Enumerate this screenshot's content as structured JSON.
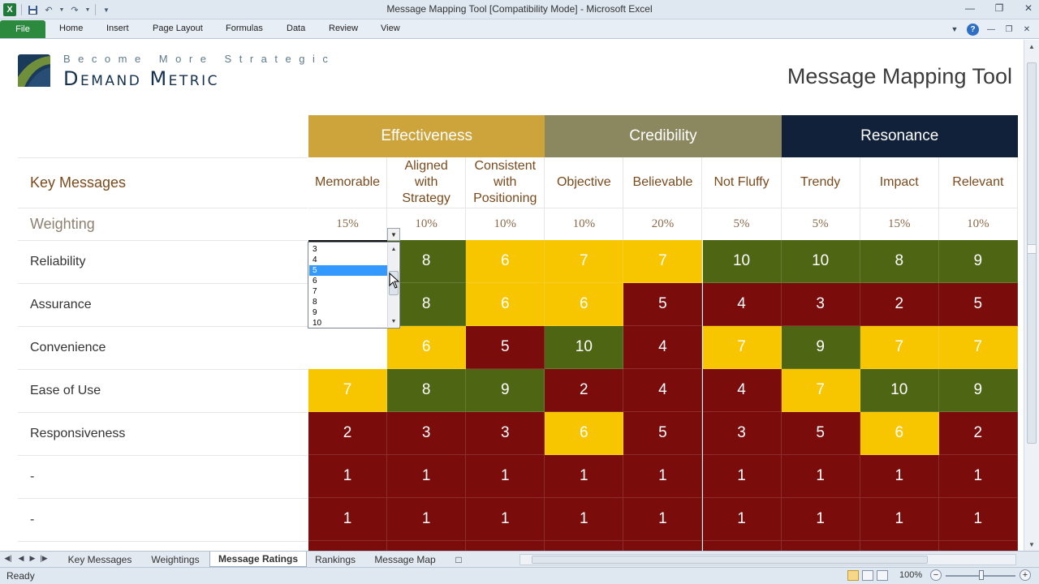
{
  "window": {
    "title": "Message Mapping Tool  [Compatibility Mode]  -  Microsoft Excel",
    "app_icon": "X"
  },
  "ribbon": {
    "file_label": "File",
    "tabs": [
      "Home",
      "Insert",
      "Page Layout",
      "Formulas",
      "Data",
      "Review",
      "View"
    ],
    "help_label": "?"
  },
  "logo": {
    "tagline": "Become More Strategic",
    "brand": "Demand Metric"
  },
  "sheet": {
    "tool_title": "Message Mapping Tool",
    "key_messages_label": "Key Messages",
    "weighting_label": "Weighting",
    "categories": [
      {
        "label": "Effectiveness",
        "color": "#cda43c"
      },
      {
        "label": "Credibility",
        "color": "#8b8860"
      },
      {
        "label": "Resonance",
        "color": "#12213a"
      }
    ],
    "criteria": [
      "Memorable",
      "Aligned with Strategy",
      "Consistent with Positioning",
      "Objective",
      "Believable",
      "Not Fluffy",
      "Trendy",
      "Impact",
      "Relevant"
    ],
    "weights": [
      "15%",
      "10%",
      "10%",
      "10%",
      "20%",
      "5%",
      "5%",
      "15%",
      "10%"
    ],
    "rows": [
      {
        "label": "Reliability",
        "scores": [
          "5",
          "8",
          "6",
          "7",
          "7",
          "10",
          "10",
          "8",
          "9"
        ]
      },
      {
        "label": "Assurance",
        "scores": [
          "",
          "8",
          "6",
          "6",
          "5",
          "4",
          "3",
          "2",
          "5"
        ]
      },
      {
        "label": "Convenience",
        "scores": [
          "",
          "6",
          "5",
          "10",
          "4",
          "7",
          "9",
          "7",
          "7"
        ]
      },
      {
        "label": "Ease of Use",
        "scores": [
          "7",
          "8",
          "9",
          "2",
          "4",
          "4",
          "7",
          "10",
          "9"
        ]
      },
      {
        "label": "Responsiveness",
        "scores": [
          "2",
          "3",
          "3",
          "6",
          "5",
          "3",
          "5",
          "6",
          "2"
        ]
      },
      {
        "label": "-",
        "scores": [
          "1",
          "1",
          "1",
          "1",
          "1",
          "1",
          "1",
          "1",
          "1"
        ]
      },
      {
        "label": "-",
        "scores": [
          "1",
          "1",
          "1",
          "1",
          "1",
          "1",
          "1",
          "1",
          "1"
        ]
      }
    ],
    "score_colors": {
      "low": "#7b0c0c",
      "mid": "#f7c600",
      "high": "#4e6614"
    }
  },
  "dropdown": {
    "options": [
      "3",
      "4",
      "5",
      "6",
      "7",
      "8",
      "9",
      "10"
    ],
    "selected": "5"
  },
  "sheet_tabs": {
    "tabs": [
      "Key Messages",
      "Weightings",
      "Message Ratings",
      "Rankings",
      "Message Map"
    ],
    "active": "Message Ratings"
  },
  "statusbar": {
    "ready": "Ready",
    "zoom": "100%"
  }
}
